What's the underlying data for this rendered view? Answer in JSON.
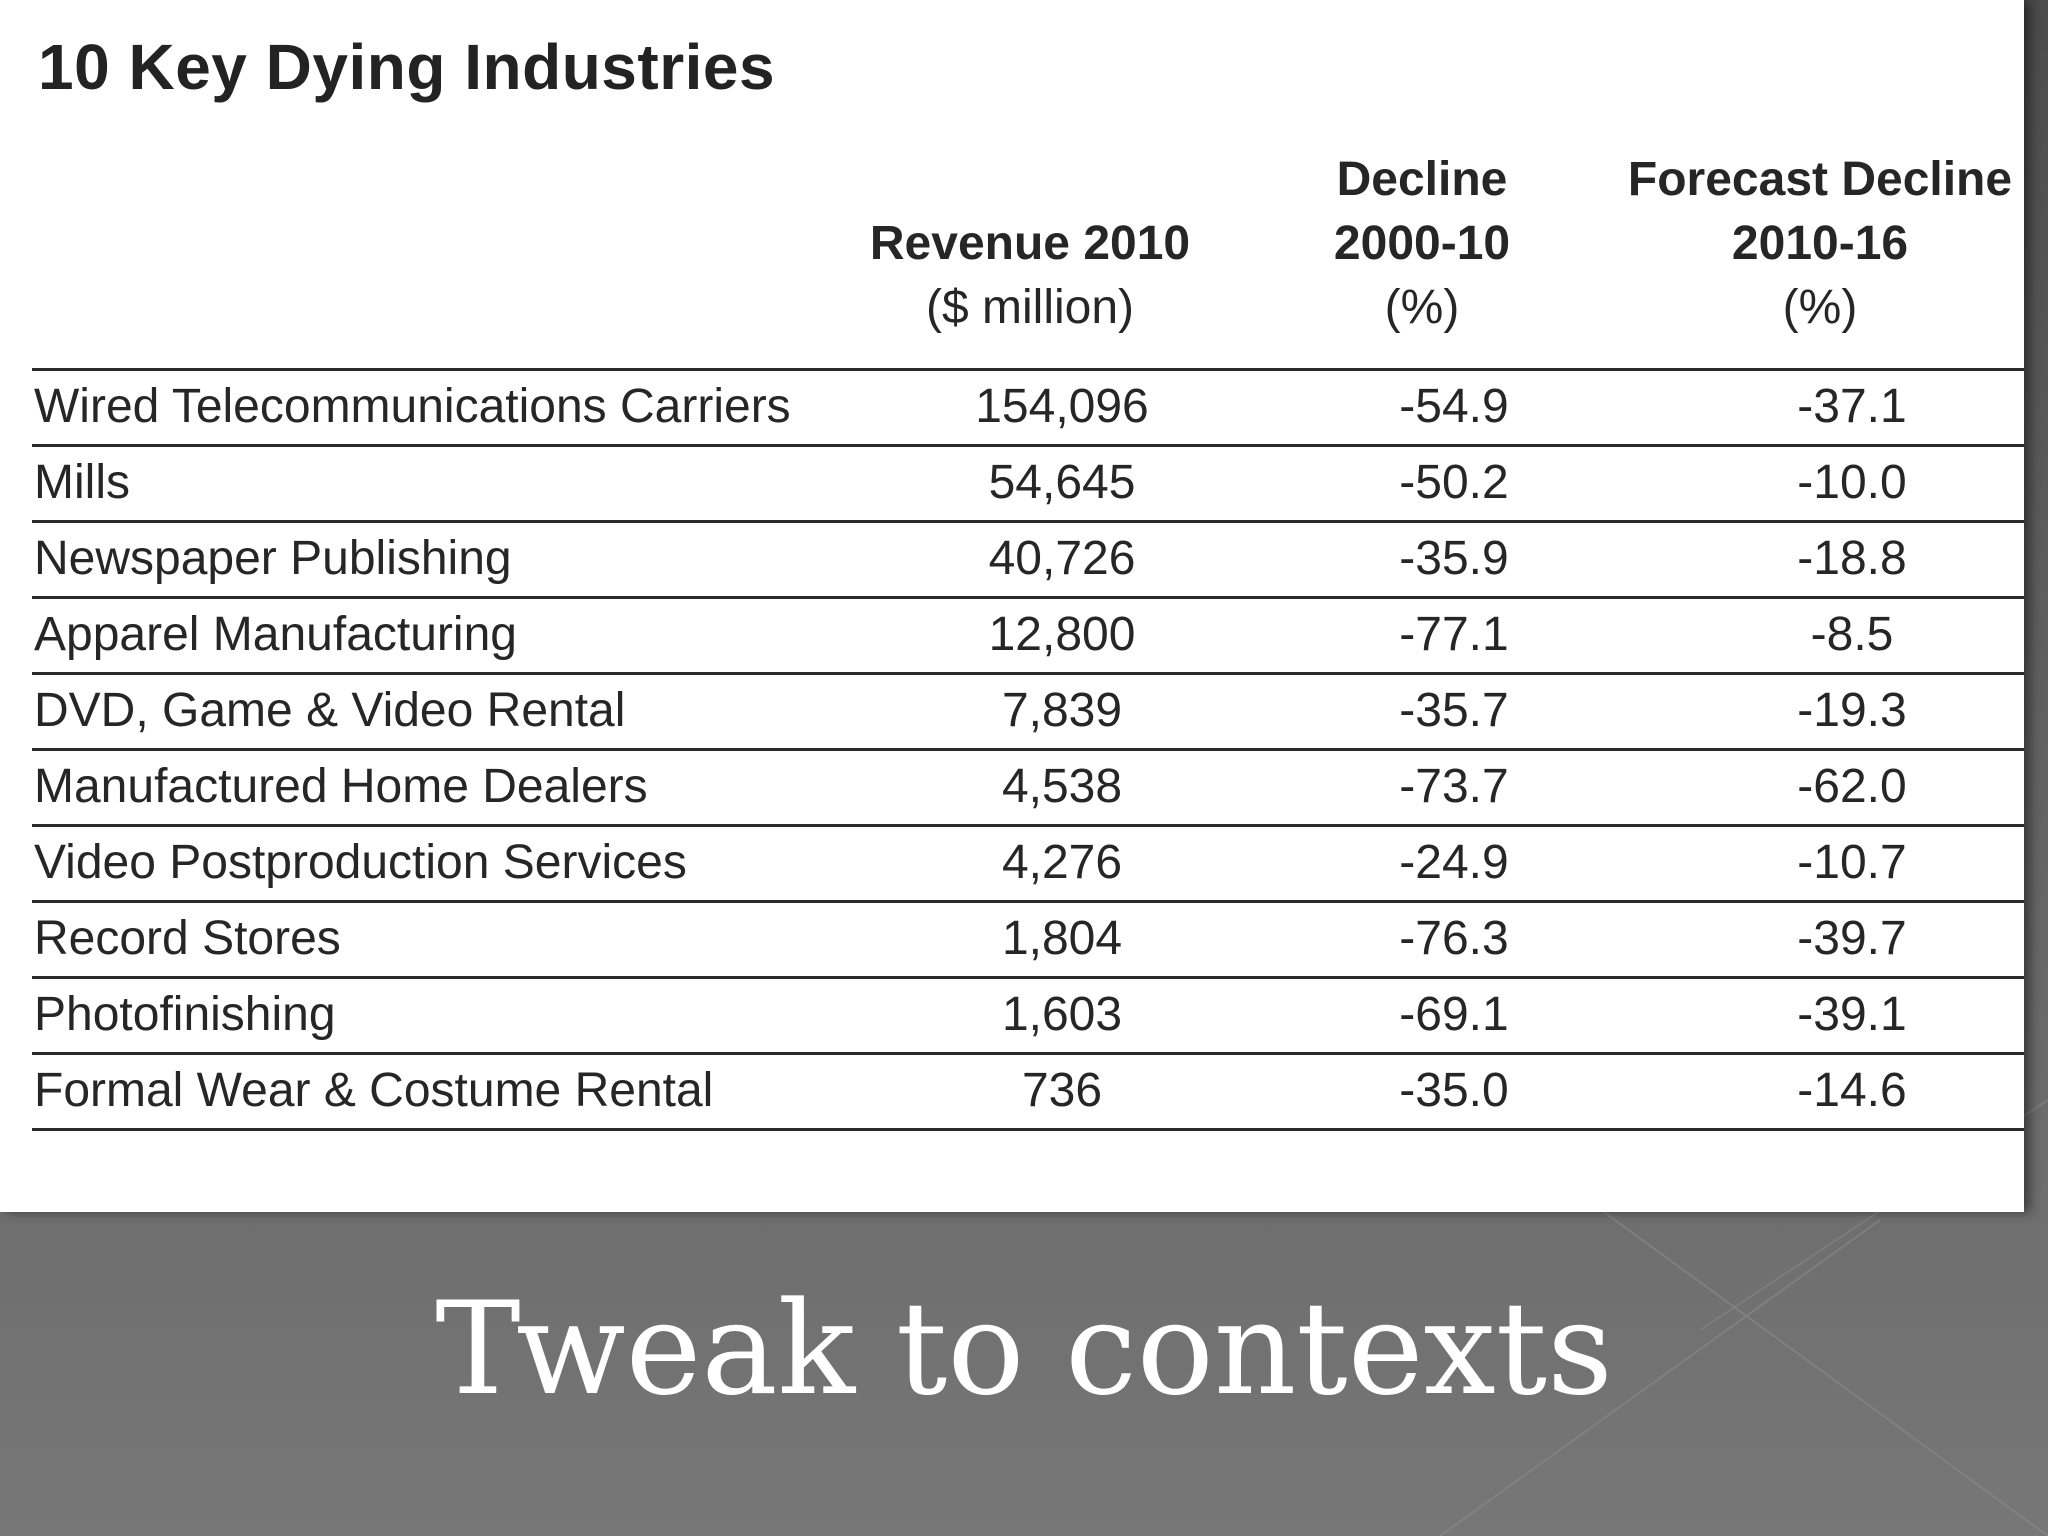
{
  "table": {
    "title": "10 Key Dying Industries",
    "headers": {
      "revenue": {
        "line1": "Revenue 2010",
        "unit": "($ million)"
      },
      "decline": {
        "line1": "Decline",
        "line2": "2000-10",
        "unit": "(%)"
      },
      "forecast": {
        "line1": "Forecast Decline",
        "line2": "2010-16",
        "unit": "(%)"
      }
    },
    "rows": [
      {
        "industry": "Wired Telecommunications Carriers",
        "revenue": "154,096",
        "decline": "-54.9",
        "forecast": "-37.1"
      },
      {
        "industry": "Mills",
        "revenue": "54,645",
        "decline": "-50.2",
        "forecast": "-10.0"
      },
      {
        "industry": "Newspaper Publishing",
        "revenue": "40,726",
        "decline": "-35.9",
        "forecast": "-18.8"
      },
      {
        "industry": "Apparel Manufacturing",
        "revenue": "12,800",
        "decline": "-77.1",
        "forecast": "-8.5"
      },
      {
        "industry": "DVD, Game & Video Rental",
        "revenue": "7,839",
        "decline": "-35.7",
        "forecast": "-19.3"
      },
      {
        "industry": "Manufactured Home Dealers",
        "revenue": "4,538",
        "decline": "-73.7",
        "forecast": "-62.0"
      },
      {
        "industry": "Video Postproduction Services",
        "revenue": "4,276",
        "decline": "-24.9",
        "forecast": "-10.7"
      },
      {
        "industry": "Record Stores",
        "revenue": "1,804",
        "decline": "-76.3",
        "forecast": "-39.7"
      },
      {
        "industry": "Photofinishing",
        "revenue": "1,603",
        "decline": "-69.1",
        "forecast": "-39.1"
      },
      {
        "industry": "Formal Wear & Costume Rental",
        "revenue": "736",
        "decline": "-35.0",
        "forecast": "-14.6"
      }
    ]
  },
  "slide": {
    "caption": "Tweak to contexts"
  },
  "colors": {
    "slide_background": "#5f5f5f",
    "table_background": "#ffffff",
    "text": "#262626",
    "caption_text": "#ffffff"
  }
}
